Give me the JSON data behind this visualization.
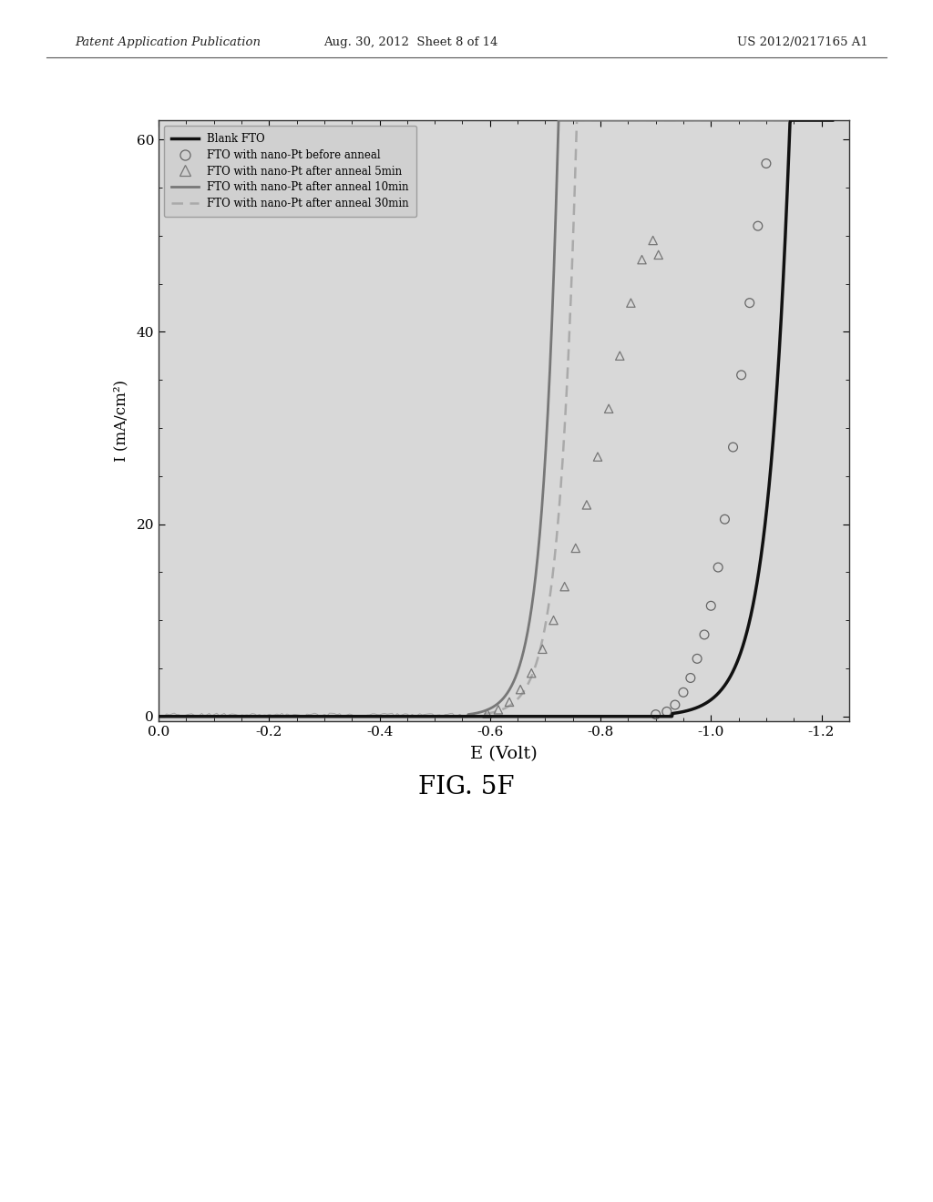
{
  "title": "FIG. 5F",
  "xlabel": "E (Volt)",
  "ylabel": "I (mA/cm²)",
  "xlim": [
    0.0,
    -1.25
  ],
  "ylim": [
    -0.5,
    62
  ],
  "xticks": [
    0.0,
    -0.2,
    -0.4,
    -0.6,
    -0.8,
    -1.0,
    -1.2
  ],
  "yticks": [
    0,
    20,
    40,
    60
  ],
  "fig_bg_color": "#ffffff",
  "plot_bg_color": "#d8d8d8",
  "header_left": "Patent Application Publication",
  "header_center": "Aug. 30, 2012  Sheet 8 of 14",
  "header_right": "US 2012/0217165 A1",
  "fig_label": "FIG. 5F",
  "blank_fto_color": "#111111",
  "anneal_10min_color": "#777777",
  "anneal_30min_color": "#aaaaaa",
  "scatter_color": "#888888",
  "e_circles": [
    -0.9,
    -0.92,
    -0.935,
    -0.95,
    -0.963,
    -0.975,
    -0.988,
    -1.0,
    -1.013,
    -1.025,
    -1.04,
    -1.055,
    -1.07,
    -1.085,
    -1.1
  ],
  "i_circles": [
    0.2,
    0.5,
    1.2,
    2.5,
    4.0,
    6.0,
    8.5,
    11.5,
    15.5,
    20.5,
    28.0,
    35.5,
    43.0,
    51.0,
    57.5
  ],
  "e_triangles": [
    -0.595,
    -0.615,
    -0.635,
    -0.655,
    -0.675,
    -0.695,
    -0.715,
    -0.735,
    -0.755,
    -0.775,
    -0.795,
    -0.815,
    -0.835,
    -0.855,
    -0.875,
    -0.895,
    -0.905
  ],
  "i_triangles": [
    0.3,
    0.7,
    1.5,
    2.8,
    4.5,
    7.0,
    10.0,
    13.5,
    17.5,
    22.0,
    27.0,
    32.0,
    37.5,
    43.0,
    47.5,
    49.5,
    48.0
  ]
}
